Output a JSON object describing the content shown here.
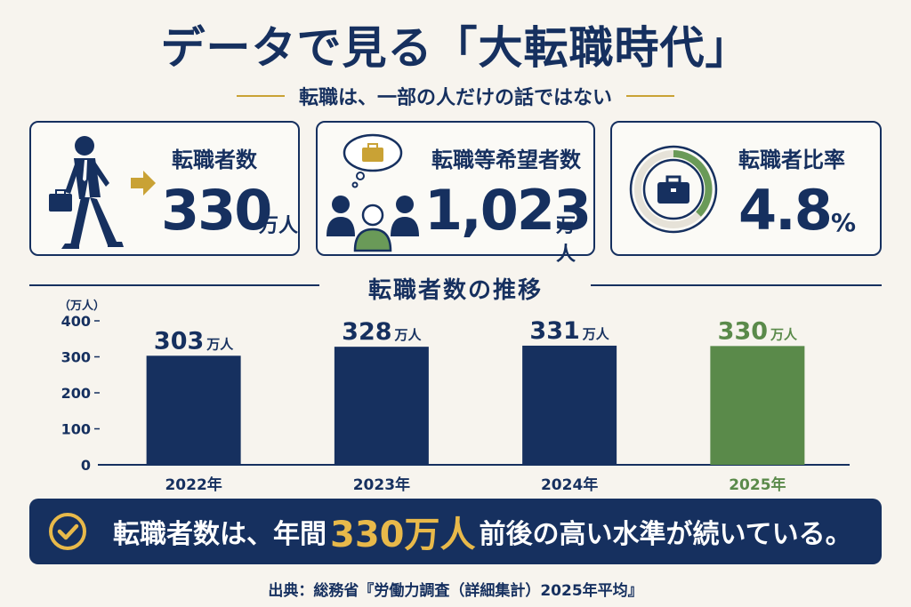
{
  "title": "データで見る「大転職時代」",
  "subtitle": "転職は、一部の人だけの話ではない",
  "cards": [
    {
      "label": "転職者数",
      "value": "330",
      "unit": "万人",
      "icon": "walking-businessman-arrow-icon"
    },
    {
      "label": "転職等希望者数",
      "value": "1,023",
      "unit": "万人",
      "icon": "people-thinking-briefcase-icon"
    },
    {
      "label": "転職者比率",
      "value": "4.8",
      "unit": "%",
      "icon": "briefcase-donut-icon",
      "ratio": 0.048
    }
  ],
  "section_title": "転職者数の推移",
  "chart_data": {
    "type": "bar",
    "title": "転職者数の推移",
    "ylabel": "（万人）",
    "ylim": [
      0,
      400
    ],
    "yticks": [
      0,
      100,
      200,
      300,
      400
    ],
    "categories": [
      "2022年",
      "2023年",
      "2024年",
      "2025年"
    ],
    "values": [
      303,
      328,
      331,
      330
    ],
    "data_labels": [
      "303",
      "328",
      "331",
      "330"
    ],
    "data_label_unit": "万人",
    "colors": [
      "#16305f",
      "#16305f",
      "#16305f",
      "#5a8a4a"
    ],
    "grid": false
  },
  "banner": {
    "before": "転職者数は、年間",
    "highlight": "330万人",
    "after": "前後の高い水準が続いている。"
  },
  "source": "出典：総務省『労働力調査（詳細集計）2025年平均』",
  "colors": {
    "navy": "#16305f",
    "gold": "#c9a235",
    "green": "#5a8a4a",
    "highlight": "#e8b94a",
    "background": "#f7f4ee"
  }
}
